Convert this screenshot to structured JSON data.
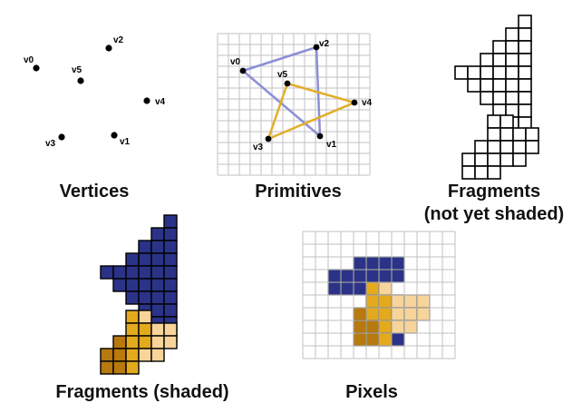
{
  "captions": {
    "vertices": "Vertices",
    "primitives": "Primitives",
    "fragments_line1": "Fragments",
    "fragments_line2": "(not yet shaded)",
    "fragments_shaded": "Fragments (shaded)",
    "pixels": "Pixels"
  },
  "vertices": [
    {
      "label": "v0"
    },
    {
      "label": "v1"
    },
    {
      "label": "v2"
    },
    {
      "label": "v3"
    },
    {
      "label": "v4"
    },
    {
      "label": "v5"
    }
  ],
  "colors": {
    "blue_fragment": "#2b3388",
    "gold_fragment": "#e3aa1e",
    "light_gold_fragment": "#f7d49a",
    "dark_gold_fragment": "#b8790e",
    "blue_edge": "#8c8ed6",
    "gold_edge": "#e1ae2a",
    "grid_line": "#c2c2c2",
    "text": "#111111"
  }
}
